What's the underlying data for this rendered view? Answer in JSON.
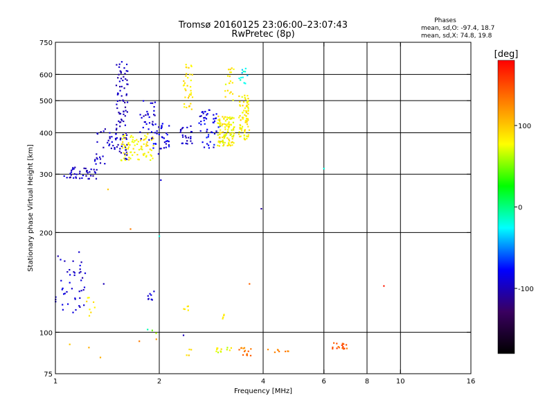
{
  "header": {
    "title_line1": "Tromsø 20160125 23:06:00–23:07:43",
    "title_line2": "RwPretec (8p)"
  },
  "phases": {
    "heading": "Phases",
    "line_o": "mean, sd,O:  -97.4, 18.7",
    "line_x": "mean, sd,X:  74.8, 19.8"
  },
  "chart_data": {
    "type": "scatter",
    "xlabel": "Frequency [MHz]",
    "ylabel": "Stationary phase Virtual Height [km]",
    "x_scale": "log",
    "y_scale": "log",
    "xlim": [
      1,
      16
    ],
    "ylim": [
      75,
      750
    ],
    "x_ticks": [
      1,
      2,
      4,
      6,
      8,
      10,
      16
    ],
    "y_ticks": [
      75,
      100,
      200,
      300,
      400,
      500,
      600,
      750
    ],
    "x_grid": [
      2,
      4,
      6,
      8,
      10
    ],
    "y_grid": [
      100,
      200,
      300,
      400,
      500,
      600
    ],
    "color_scale": {
      "label": "[deg]",
      "range": [
        -180,
        180
      ],
      "ticks": [
        100,
        0,
        -100
      ],
      "colors": [
        "#000000",
        "#3a0060",
        "#0000ff",
        "#00ffff",
        "#00ff00",
        "#ffff00",
        "#ff8000",
        "#ff0000"
      ]
    },
    "clusters": [
      {
        "x": [
          1.0,
          1.22
        ],
        "y": [
          110,
          175
        ],
        "phase": [
          -105,
          -80
        ],
        "n": 45
      },
      {
        "x": [
          1.22,
          1.32
        ],
        "y": [
          112,
          135
        ],
        "phase": [
          70,
          95
        ],
        "n": 8
      },
      {
        "x": [
          1.05,
          1.32
        ],
        "y": [
          290,
          315
        ],
        "phase": [
          -110,
          -85
        ],
        "n": 40
      },
      {
        "x": [
          1.3,
          1.5
        ],
        "y": [
          320,
          420
        ],
        "phase": [
          -105,
          -85
        ],
        "n": 35
      },
      {
        "x": [
          1.5,
          1.62
        ],
        "y": [
          330,
          660
        ],
        "phase": [
          -110,
          -90
        ],
        "n": 90
      },
      {
        "x": [
          1.55,
          1.95
        ],
        "y": [
          330,
          400
        ],
        "phase": [
          70,
          95
        ],
        "n": 80
      },
      {
        "x": [
          1.75,
          1.95
        ],
        "y": [
          380,
          500
        ],
        "phase": [
          -105,
          -80
        ],
        "n": 30
      },
      {
        "x": [
          1.9,
          2.15
        ],
        "y": [
          340,
          430
        ],
        "phase": [
          -100,
          -70
        ],
        "n": 35
      },
      {
        "x": [
          1.85,
          1.95
        ],
        "y": [
          120,
          135
        ],
        "phase": [
          -100,
          -85
        ],
        "n": 8
      },
      {
        "x": [
          2.35,
          2.5
        ],
        "y": [
          470,
          650
        ],
        "phase": [
          75,
          100
        ],
        "n": 35
      },
      {
        "x": [
          2.3,
          2.5
        ],
        "y": [
          370,
          420
        ],
        "phase": [
          -105,
          -85
        ],
        "n": 25
      },
      {
        "x": [
          2.6,
          3.0
        ],
        "y": [
          360,
          470
        ],
        "phase": [
          -100,
          -70
        ],
        "n": 50
      },
      {
        "x": [
          2.95,
          3.3
        ],
        "y": [
          365,
          450
        ],
        "phase": [
          65,
          100
        ],
        "n": 110
      },
      {
        "x": [
          3.1,
          3.3
        ],
        "y": [
          500,
          630
        ],
        "phase": [
          70,
          100
        ],
        "n": 20
      },
      {
        "x": [
          3.4,
          3.65
        ],
        "y": [
          380,
          520
        ],
        "phase": [
          70,
          100
        ],
        "n": 80
      },
      {
        "x": [
          3.4,
          3.6
        ],
        "y": [
          560,
          630
        ],
        "phase": [
          -40,
          -10
        ],
        "n": 12
      },
      {
        "x": [
          2.35,
          2.45
        ],
        "y": [
          115,
          120
        ],
        "phase": [
          75,
          90
        ],
        "n": 5
      },
      {
        "x": [
          3.05,
          3.1
        ],
        "y": [
          110,
          115
        ],
        "phase": [
          80,
          95
        ],
        "n": 4
      },
      {
        "x": [
          2.4,
          2.5
        ],
        "y": [
          85,
          89
        ],
        "phase": [
          80,
          100
        ],
        "n": 4
      },
      {
        "x": [
          2.9,
          3.25
        ],
        "y": [
          87,
          90
        ],
        "phase": [
          60,
          90
        ],
        "n": 12
      },
      {
        "x": [
          3.4,
          3.7
        ],
        "y": [
          85,
          90
        ],
        "phase": [
          110,
          150
        ],
        "n": 14
      },
      {
        "x": [
          4.1,
          4.8
        ],
        "y": [
          87,
          89
        ],
        "phase": [
          120,
          140
        ],
        "n": 8
      },
      {
        "x": [
          6.3,
          7.0
        ],
        "y": [
          89,
          93
        ],
        "phase": [
          125,
          160
        ],
        "n": 20
      },
      {
        "x": [
          1.9,
          2.0
        ],
        "y": [
          95,
          103
        ],
        "phase": [
          -20,
          130
        ],
        "n": 3
      }
    ],
    "points": [
      {
        "x": 1.1,
        "y": 92,
        "phase": 100
      },
      {
        "x": 1.35,
        "y": 84,
        "phase": 110
      },
      {
        "x": 1.65,
        "y": 205,
        "phase": 130
      },
      {
        "x": 1.75,
        "y": 94,
        "phase": 130
      },
      {
        "x": 1.85,
        "y": 102,
        "phase": -10
      },
      {
        "x": 2.0,
        "y": 195,
        "phase": -20
      },
      {
        "x": 2.02,
        "y": 288,
        "phase": -90
      },
      {
        "x": 2.35,
        "y": 98,
        "phase": -100
      },
      {
        "x": 3.65,
        "y": 140,
        "phase": 140
      },
      {
        "x": 3.95,
        "y": 236,
        "phase": -110
      },
      {
        "x": 6.0,
        "y": 312,
        "phase": -20
      },
      {
        "x": 8.95,
        "y": 138,
        "phase": 170
      },
      {
        "x": 1.25,
        "y": 90,
        "phase": 110
      },
      {
        "x": 1.42,
        "y": 270,
        "phase": 100
      },
      {
        "x": 1.38,
        "y": 140,
        "phase": -100
      }
    ]
  }
}
